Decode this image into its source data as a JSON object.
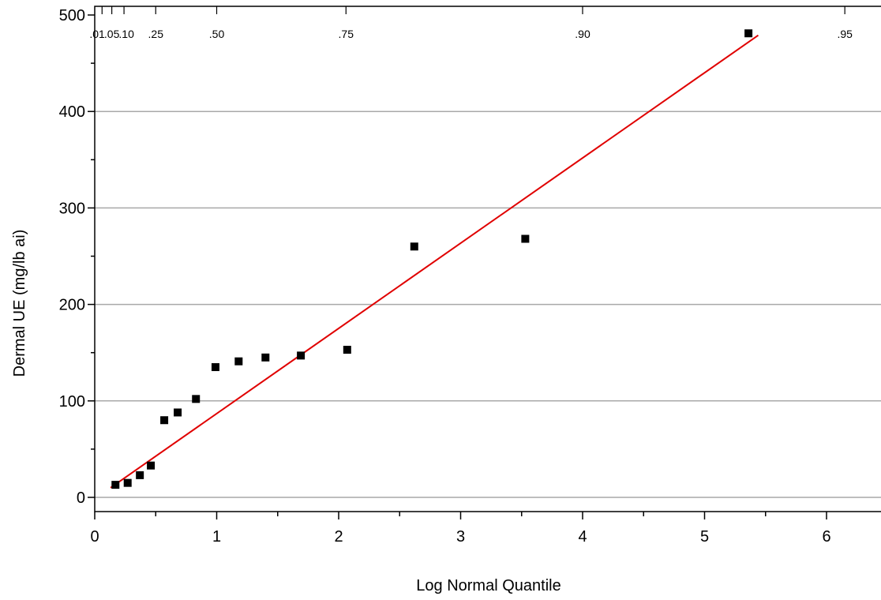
{
  "chart_data": {
    "type": "scatter",
    "title": "",
    "xlabel": "Log Normal Quantile",
    "ylabel": "Dermal UE (mg/lb ai)",
    "xlim": [
      0,
      6.5
    ],
    "ylim": [
      -15,
      500
    ],
    "xticks": [
      0,
      1,
      2,
      3,
      4,
      5,
      6
    ],
    "yticks": [
      0,
      100,
      200,
      300,
      400,
      500
    ],
    "grid": "horizontal",
    "prob_axis": {
      "labels": [
        ".01",
        ".05",
        ".10",
        ".25",
        ".50",
        ".75",
        ".90",
        ".95"
      ],
      "positions": [
        0.06,
        0.14,
        0.24,
        0.5,
        1.0,
        2.06,
        4.0,
        6.15
      ],
      "label_positions": [
        0.02,
        0.14,
        0.26,
        0.5,
        1.0,
        2.06,
        4.0,
        6.15
      ]
    },
    "series": [
      {
        "color": "#000000",
        "x": [
          0.17,
          0.27,
          0.37,
          0.46,
          0.57,
          0.68,
          0.83,
          0.99,
          1.18,
          1.4,
          1.69,
          2.07,
          2.62,
          3.53,
          5.36
        ],
        "y": [
          13,
          15,
          23,
          33,
          80,
          88,
          102,
          135,
          141,
          145,
          147,
          153,
          260,
          268,
          481
        ]
      }
    ],
    "fit_line": {
      "color": "#e00000",
      "x": [
        0.13,
        5.44
      ],
      "y": [
        10,
        479
      ]
    }
  }
}
